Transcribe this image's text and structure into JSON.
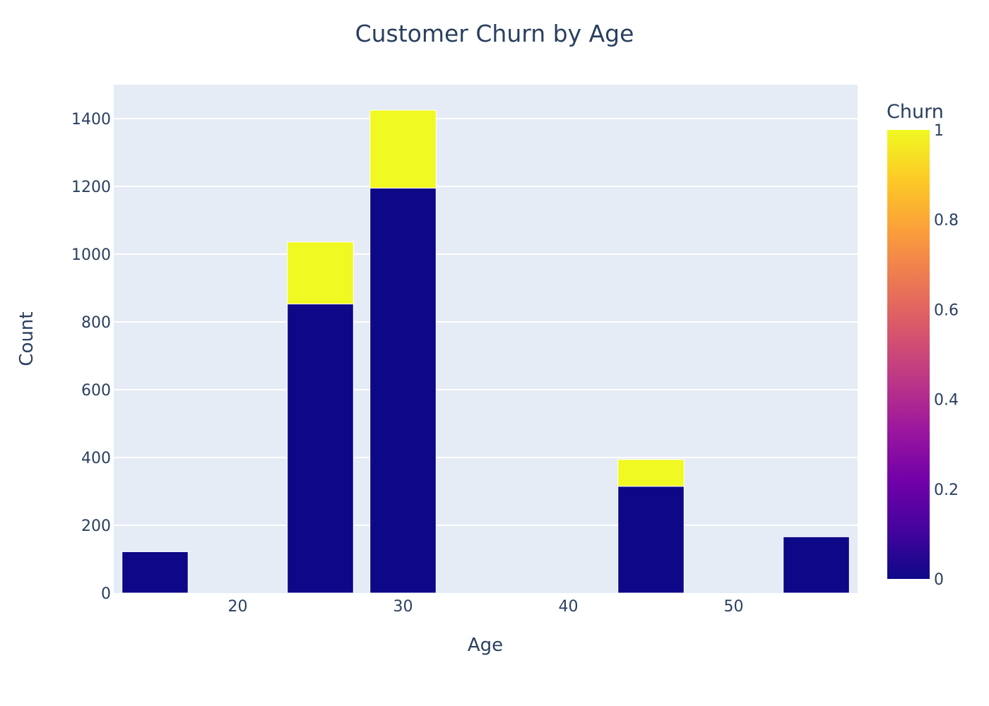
{
  "chart_data": {
    "type": "bar",
    "title": "Customer Churn by Age",
    "xlabel": "Age",
    "ylabel": "Count",
    "barmode": "stack",
    "x": [
      15,
      25,
      30,
      45,
      55
    ],
    "series": [
      {
        "churn": 0,
        "color": "#0d0887",
        "values": [
          122,
          853,
          1195,
          315,
          166
        ]
      },
      {
        "churn": 1,
        "color": "#f0f921",
        "values": [
          0,
          183,
          230,
          79,
          0
        ]
      }
    ],
    "xlim": [
      12.5,
      57.5
    ],
    "ylim": [
      0,
      1500
    ],
    "xticks": [
      20,
      30,
      40,
      50
    ],
    "yticks": [
      0,
      200,
      400,
      600,
      800,
      1000,
      1200,
      1400
    ],
    "bar_width": 4,
    "grid": true,
    "plot_bgcolor": "#e5ecf6",
    "colorbar": {
      "title": "Churn",
      "range": [
        0,
        1
      ],
      "ticks": [
        "0",
        "0.2",
        "0.4",
        "0.6",
        "0.8",
        "1"
      ],
      "colorscale": [
        "#0d0887",
        "#46039f",
        "#7201a8",
        "#9c179e",
        "#bd3786",
        "#d8576b",
        "#ed7953",
        "#fb9f3a",
        "#fdca26",
        "#f0f921"
      ]
    }
  }
}
